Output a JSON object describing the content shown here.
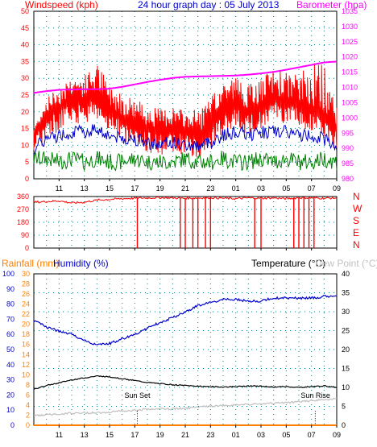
{
  "colors": {
    "windspeed": "#ff0000",
    "barometer": "#ff00ff",
    "wind_avg": "#0000cc",
    "wind_low": "#008000",
    "direction": "#ff0000",
    "rainfall": "#ff8000",
    "humidity": "#0000cc",
    "temperature": "#000000",
    "dewpoint": "#c0c0c0",
    "axis_blue": "#0000cc",
    "axis_red": "#ff0000",
    "axis_orange": "#ff8000",
    "grid": "#008080"
  },
  "header": {
    "wind_title": "Windspeed (kph)",
    "graph_title": "24 hour graph day : 05 July 2013",
    "baro_title": "Barometer (hpa)",
    "rain_title": "Rainfall (mm)",
    "humidity_title": "Humidity (%)",
    "temp_title": "Temperature (°C)",
    "dew_title": "Dew Point (°C)"
  },
  "annotations": {
    "sunset": "Sun Set",
    "sunrise": "Sun Rise"
  },
  "chart_data": [
    {
      "type": "line",
      "title": "24 hour graph day : 05 July 2013",
      "ylabel": "Windspeed (kph)",
      "ylabel_right": "Barometer (hpa)",
      "ylim": [
        0,
        50
      ],
      "ylim_right": [
        980,
        1035
      ],
      "x_ticks": [
        "11",
        "13",
        "15",
        "17",
        "19",
        "21",
        "23",
        "01",
        "03",
        "05",
        "07",
        "09"
      ],
      "y_ticks": [
        0,
        5,
        10,
        15,
        20,
        25,
        30,
        35,
        40,
        45,
        50
      ],
      "y_ticks_right": [
        980,
        985,
        990,
        995,
        1000,
        1005,
        1010,
        1015,
        1020,
        1025,
        1030,
        1035
      ],
      "series": [
        {
          "name": "Barometer (hpa)",
          "axis": "right",
          "x": [
            9,
            10,
            11,
            12,
            13,
            14,
            15,
            16,
            17,
            18,
            19,
            20,
            21,
            22,
            23,
            24,
            25,
            26,
            27,
            28,
            29,
            30,
            31,
            32,
            33
          ],
          "y": [
            1008.2,
            1008.8,
            1009.2,
            1009.3,
            1009.4,
            1009.4,
            1009.6,
            1010.2,
            1011.0,
            1011.8,
            1012.5,
            1013.1,
            1013.5,
            1013.6,
            1013.7,
            1013.8,
            1013.9,
            1014.2,
            1014.6,
            1015.1,
            1015.8,
            1016.6,
            1017.4,
            1018.2,
            1018.5
          ]
        },
        {
          "name": "Windspeed (kph)",
          "axis": "left",
          "x": [
            9,
            10,
            11,
            12,
            13,
            14,
            15,
            16,
            17,
            18,
            19,
            20,
            21,
            22,
            23,
            24,
            25,
            26,
            27,
            28,
            29,
            30,
            31,
            32,
            33
          ],
          "y": [
            14,
            20,
            22,
            25,
            24,
            26,
            22,
            19,
            18,
            16,
            15,
            16,
            15,
            14,
            16,
            22,
            23,
            21,
            22,
            25,
            24,
            23,
            22,
            20,
            16
          ],
          "y_peak": [
            15,
            24,
            28,
            31,
            31,
            35,
            28,
            26,
            24,
            22,
            21,
            22,
            20,
            21,
            24,
            30,
            31,
            28,
            30,
            33,
            32,
            31,
            35,
            34,
            22
          ]
        },
        {
          "name": "Wind average",
          "axis": "left",
          "x": [
            9,
            10,
            11,
            12,
            13,
            14,
            15,
            16,
            17,
            18,
            19,
            20,
            21,
            22,
            23,
            24,
            25,
            26,
            27,
            28,
            29,
            30,
            31,
            32,
            33
          ],
          "y": [
            9,
            12,
            13,
            14,
            14,
            15,
            13,
            12,
            12,
            11,
            10,
            11,
            10,
            10,
            11,
            13,
            14,
            13,
            14,
            14,
            14,
            13,
            13,
            12,
            10
          ]
        },
        {
          "name": "Wind low",
          "axis": "left",
          "x": [
            9,
            10,
            11,
            12,
            13,
            14,
            15,
            16,
            17,
            18,
            19,
            20,
            21,
            22,
            23,
            24,
            25,
            26,
            27,
            28,
            29,
            30,
            31,
            32,
            33
          ],
          "y": [
            6,
            6,
            5,
            6,
            5,
            6,
            5,
            5,
            6,
            5,
            5,
            5,
            6,
            5,
            5,
            6,
            5,
            5,
            6,
            5,
            6,
            5,
            5,
            6,
            5
          ]
        }
      ]
    },
    {
      "type": "line",
      "ylabel_right": "N W S E N",
      "ylim": [
        0,
        360
      ],
      "y_ticks": [
        0,
        90,
        180,
        270,
        360
      ],
      "direction_labels": [
        "N",
        "W",
        "S",
        "E",
        "N"
      ],
      "x_ticks": [
        "11",
        "13",
        "15",
        "17",
        "19",
        "21",
        "23",
        "01",
        "03",
        "05",
        "07",
        "09"
      ],
      "series": [
        {
          "name": "Wind direction",
          "x": [
            9,
            10,
            11,
            12,
            13,
            14,
            15,
            16,
            17,
            18,
            19,
            20,
            21,
            22,
            23,
            24,
            25,
            26,
            27,
            28,
            29,
            30,
            31,
            32,
            33
          ],
          "y": [
            320,
            325,
            330,
            315,
            320,
            335,
            340,
            345,
            348,
            350,
            352,
            350,
            348,
            350,
            352,
            348,
            345,
            350,
            348,
            350,
            345,
            352,
            350,
            348,
            350
          ],
          "drops_to_north_hours": [
            17.2,
            20.6,
            21.0,
            21.6,
            22.0,
            22.6,
            23.0,
            26.5,
            27.0,
            29.6,
            30.0,
            30.4,
            30.8,
            31.2
          ]
        }
      ]
    },
    {
      "type": "line",
      "ylim_left_humidity": [
        0,
        100
      ],
      "ylim_left_rain": [
        0,
        30
      ],
      "ylim_right_temp": [
        0,
        40
      ],
      "y_ticks_humidity": [
        0,
        10,
        20,
        30,
        40,
        50,
        60,
        70,
        80,
        90,
        100
      ],
      "y_ticks_rain": [
        0,
        2,
        4,
        6,
        8,
        10,
        12,
        14,
        16,
        18,
        20,
        22,
        24,
        26,
        28,
        30
      ],
      "y_ticks_temp": [
        0,
        5,
        10,
        15,
        20,
        25,
        30,
        35,
        40
      ],
      "x_ticks": [
        "11",
        "13",
        "15",
        "17",
        "19",
        "21",
        "23",
        "01",
        "03",
        "05",
        "07",
        "09"
      ],
      "series": [
        {
          "name": "Humidity (%)",
          "x": [
            9,
            10,
            11,
            12,
            13,
            14,
            15,
            16,
            17,
            18,
            19,
            20,
            21,
            22,
            23,
            24,
            25,
            26,
            27,
            28,
            29,
            30,
            31,
            32,
            33
          ],
          "y": [
            69,
            65,
            62,
            60,
            56,
            53,
            54,
            57,
            60,
            64,
            68,
            71,
            75,
            79,
            81,
            83,
            83,
            82,
            82,
            84,
            84,
            84,
            84,
            85,
            85
          ]
        },
        {
          "name": "Temperature (°C)",
          "x": [
            9,
            10,
            11,
            12,
            13,
            14,
            15,
            16,
            17,
            18,
            19,
            20,
            21,
            22,
            23,
            24,
            25,
            26,
            27,
            28,
            29,
            30,
            31,
            32,
            33
          ],
          "y": [
            9.5,
            10.5,
            11.2,
            12.0,
            12.5,
            13.0,
            12.8,
            12.3,
            11.8,
            11.3,
            11.0,
            10.7,
            10.5,
            10.3,
            10.2,
            10.1,
            10.2,
            10.4,
            10.3,
            10.1,
            10.2,
            10.0,
            10.2,
            10.4,
            10.0
          ]
        },
        {
          "name": "Dew Point (°C)",
          "x": [
            9,
            10,
            11,
            12,
            13,
            14,
            15,
            16,
            17,
            18,
            19,
            20,
            21,
            22,
            23,
            24,
            25,
            26,
            27,
            28,
            29,
            30,
            31,
            32,
            33
          ],
          "y": [
            2.5,
            2.8,
            3.0,
            3.2,
            3.3,
            3.3,
            3.5,
            3.8,
            4.0,
            4.2,
            4.3,
            4.3,
            4.5,
            4.8,
            5.0,
            5.2,
            5.3,
            5.5,
            5.6,
            5.8,
            6.0,
            6.2,
            6.5,
            6.8,
            7.0
          ]
        },
        {
          "name": "Rainfall (mm)",
          "x": [
            9,
            33
          ],
          "y": [
            0,
            0
          ]
        }
      ],
      "markers": [
        {
          "label": "Sun Set",
          "x": 17.2
        },
        {
          "label": "Sun Rise",
          "x": 31.3
        }
      ]
    }
  ]
}
